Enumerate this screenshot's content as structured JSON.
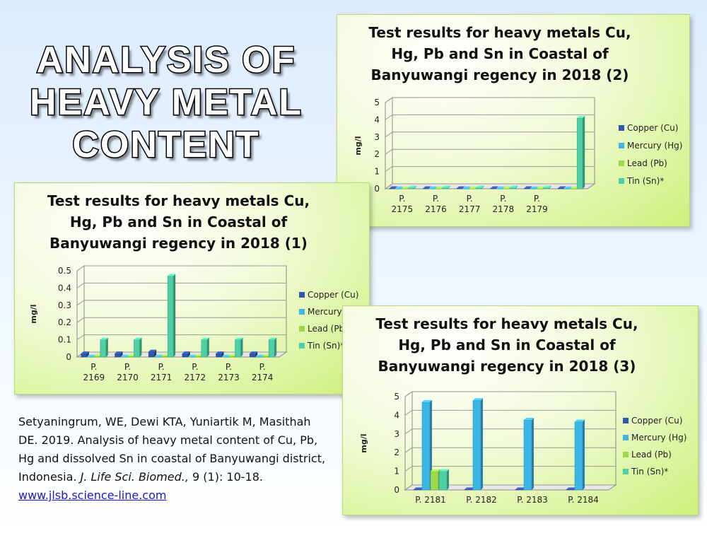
{
  "slide_title": {
    "line1": "ANALYSIS OF",
    "line2": "HEAVY METAL",
    "line3": "CONTENT"
  },
  "citation": {
    "text": "Setyaningrum, WE, Dewi KTA, Yuniartik M, Masithah DE. 2019. Analysis of heavy metal content of Cu, Pb, Hg and dissolved Sn in coastal of Banyuwangi district, Indonesia.",
    "journal": "J. Life Sci. Biomed.,",
    "details": "9 (1): 10-18.",
    "link": "www.jlsb.science-line.com"
  },
  "colors": {
    "copper": "#3355aa",
    "mercury": "#3bb6e6",
    "lead": "#9bd84a",
    "tin": "#4fcfa6"
  },
  "chart_data": [
    {
      "id": "chart1",
      "type": "bar",
      "title": [
        "Test results for heavy metals Cu,",
        "Hg, Pb and Sn in Coastal of",
        "Banyuwangi regency in 2018 (1)"
      ],
      "ylabel": "mg/l",
      "ylim": [
        0,
        0.5
      ],
      "yticks": [
        "0",
        "0.1",
        "0.2",
        "0.3",
        "0.4",
        "0.5"
      ],
      "categories": [
        [
          "P.",
          "2169"
        ],
        [
          "P.",
          "2170"
        ],
        [
          "P.",
          "2171"
        ],
        [
          "P.",
          "2172"
        ],
        [
          "P.",
          "2173"
        ],
        [
          "P.",
          "2174"
        ]
      ],
      "legend_position": "right",
      "series": [
        {
          "name": "Copper (Cu)",
          "values": [
            0.02,
            0.02,
            0.03,
            0.02,
            0.02,
            0.02
          ]
        },
        {
          "name": "Mercury (Hg)",
          "values": [
            0.001,
            0.001,
            0.001,
            0.001,
            0.001,
            0.001
          ]
        },
        {
          "name": "Lead (Pb)",
          "values": [
            0.005,
            0.005,
            0.005,
            0.005,
            0.005,
            0.005
          ]
        },
        {
          "name": "Tin (Sn)*",
          "values": [
            0.1,
            0.1,
            0.47,
            0.1,
            0.1,
            0.1
          ]
        }
      ]
    },
    {
      "id": "chart2",
      "type": "bar",
      "title": [
        "Test results for heavy metals Cu,",
        "Hg, Pb and Sn in Coastal of",
        "Banyuwangi regency in 2018 (2)"
      ],
      "ylabel": "mg/l",
      "ylim": [
        0,
        5
      ],
      "yticks": [
        "0",
        "1",
        "2",
        "3",
        "4",
        "5"
      ],
      "categories": [
        [
          "P.",
          "2175"
        ],
        [
          "P.",
          "2176"
        ],
        [
          "P.",
          "2177"
        ],
        [
          "P.",
          "2178"
        ],
        [
          "P.",
          "2179"
        ],
        [
          "",
          ""
        ]
      ],
      "legend_position": "right",
      "series": [
        {
          "name": "Copper (Cu)",
          "values": [
            0.02,
            0.02,
            0.02,
            0.02,
            0.02,
            0.02
          ]
        },
        {
          "name": "Mercury (Hg)",
          "values": [
            0.01,
            0.01,
            0.01,
            0.01,
            0.01,
            0.01
          ]
        },
        {
          "name": "Lead (Pb)",
          "values": [
            0.01,
            0.01,
            0.01,
            0.01,
            0.01,
            0.01
          ]
        },
        {
          "name": "Tin (Sn)*",
          "values": [
            0.05,
            0.05,
            0.05,
            0.05,
            0.05,
            4.1
          ]
        }
      ]
    },
    {
      "id": "chart3",
      "type": "bar",
      "title": [
        "Test results for heavy metals Cu,",
        "Hg, Pb and Sn in Coastal of",
        "Banyuwangi regency in 2018 (3)"
      ],
      "ylabel": "mg/l",
      "ylim": [
        0,
        5
      ],
      "yticks": [
        "0",
        "1",
        "2",
        "3",
        "4",
        "5"
      ],
      "categories": [
        [
          "P. 2181"
        ],
        [
          "P. 2182"
        ],
        [
          "P. 2183"
        ],
        [
          "P. 2184"
        ]
      ],
      "legend_position": "right",
      "series": [
        {
          "name": "Copper (Cu)",
          "values": [
            0.02,
            0.02,
            0.02,
            0.02
          ]
        },
        {
          "name": "Mercury (Hg)",
          "values": [
            4.7,
            4.8,
            3.75,
            3.65
          ]
        },
        {
          "name": "Lead (Pb)",
          "values": [
            1.0,
            0,
            0,
            0
          ]
        },
        {
          "name": "Tin (Sn)*",
          "values": [
            1.0,
            0,
            0,
            0
          ]
        }
      ]
    }
  ]
}
